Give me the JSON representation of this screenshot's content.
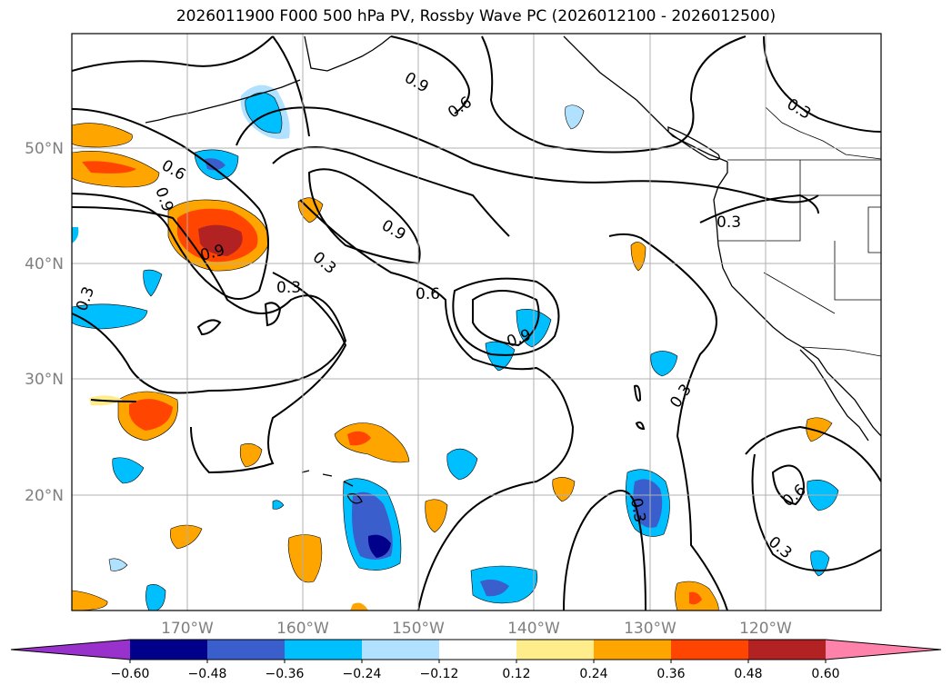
{
  "title": "2026011900 F000 500 hPa PV, Rossby Wave PC (2026012100 - 2026012500)",
  "map": {
    "lon_ticks": [
      "170°W",
      "160°W",
      "150°W",
      "140°W",
      "130°W",
      "120°W"
    ],
    "lat_ticks": [
      "50°N",
      "40°N",
      "30°N",
      "20°N"
    ],
    "grid": true,
    "contour_labels": [
      "0.9",
      "0.6",
      "0.6",
      "0.9",
      "0.9",
      "0.9",
      "0.3",
      "0.3",
      "0.3",
      "0.6",
      "0.9",
      "0.3",
      "0.3",
      "0.3",
      "0.3",
      "0.6",
      "0.3"
    ]
  },
  "colorbar": {
    "ticks": [
      "−0.60",
      "−0.48",
      "−0.36",
      "−0.24",
      "−0.12",
      "0.12",
      "0.24",
      "0.36",
      "0.48",
      "0.60"
    ],
    "colors": [
      "#9932cc",
      "#00008b",
      "#3a5fcd",
      "#00bfff",
      "#b0e2ff",
      "#ffffff",
      "#ffec8b",
      "#ffa500",
      "#ff4500",
      "#b22222",
      "#ff82ab"
    ]
  }
}
